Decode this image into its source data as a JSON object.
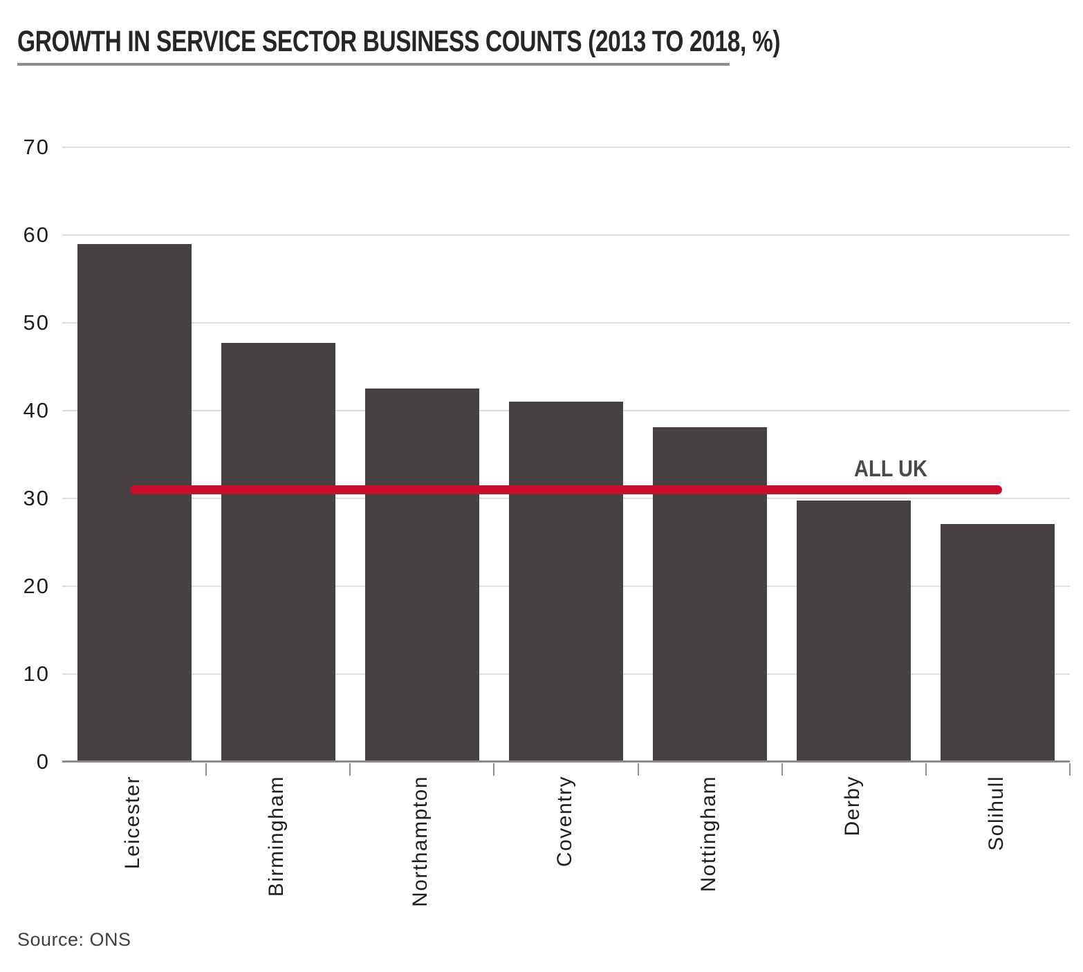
{
  "page": {
    "title": "GROWTH IN SERVICE SECTOR BUSINESS COUNTS (2013 TO 2018, %)",
    "source": "Source: ONS"
  },
  "colors": {
    "bar": "#484141",
    "reference_line": "#c8102e",
    "grid": "#dcdcdc",
    "axis": "#8a8a8a",
    "title_text": "#262626",
    "tick_text": "#1f1f1f",
    "reference_label_text": "#4a4a4a"
  },
  "chart_data": {
    "type": "bar",
    "title": "GROWTH IN SERVICE SECTOR BUSINESS COUNTS (2013 TO 2018, %)",
    "categories": [
      "Leicester",
      "Birmingham",
      "Northampton",
      "Coventry",
      "Nottingham",
      "Derby",
      "Solihull"
    ],
    "values": [
      59.0,
      47.7,
      42.5,
      41.0,
      38.1,
      29.8,
      27.1
    ],
    "xlabel": "",
    "ylabel": "",
    "ylim": [
      0,
      70
    ],
    "yticks": [
      0,
      10,
      20,
      30,
      40,
      50,
      60,
      70
    ],
    "grid": "horizontal",
    "legend": "none",
    "reference_line": {
      "label": "ALL UK",
      "value": 31
    },
    "source": "Source: ONS"
  }
}
